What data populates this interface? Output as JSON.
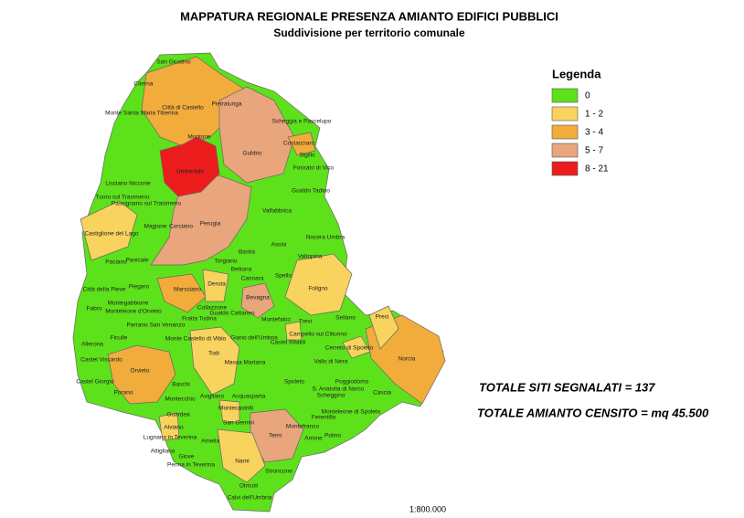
{
  "header": {
    "title": "MAPPATURA REGIONALE PRESENZA AMIANTO EDIFICI PUBBLICI",
    "subtitle": "Suddivisione per territorio comunale"
  },
  "legend": {
    "title": "Legenda",
    "items": [
      {
        "label": "0",
        "color": "#5de11a"
      },
      {
        "label": "1 - 2",
        "color": "#f8d35e"
      },
      {
        "label": "3 - 4",
        "color": "#f1ac3c"
      },
      {
        "label": "5 - 7",
        "color": "#e9a57c"
      },
      {
        "label": "8 - 21",
        "color": "#ec1c1c"
      }
    ]
  },
  "totals": [
    "TOTALE SITI SEGNALATI = 137",
    "TOTALE AMIANTO CENSITO = mq 45.500"
  ],
  "scale": "1:800.000",
  "municipalities": [
    "San Giustino",
    "Citerna",
    "Monte Santa Maria Tiberina",
    "Città di Castello",
    "Pietralunga",
    "Montone",
    "Scheggia e Pascelupo",
    "Costacciaro",
    "Gubbio",
    "Umbertide",
    "Sigillo",
    "Fossato di Vico",
    "Lisciano Niccone",
    "Tuoro sul Trasimeno",
    "Passignano sul Trasimeno",
    "Gualdo Tadino",
    "Valfabbrica",
    "Magione",
    "Corciano",
    "Perugia",
    "Castiglione del Lago",
    "Nocera Umbra",
    "Assisi",
    "Bastia",
    "Valtopina",
    "Panicale",
    "Paciano",
    "Torgiano",
    "Bettona",
    "Cannara",
    "Spello",
    "Foligno",
    "Città della Pieve",
    "Piegaro",
    "Deruta",
    "Marsciano",
    "Bevagna",
    "Montegabbione",
    "Monteleone d'Orvieto",
    "Fabro",
    "Collazzone",
    "Fratta Todina",
    "Gualdo Cattaneo",
    "Montefalco",
    "Trevi",
    "Sellano",
    "Preci",
    "Parrano",
    "San Venanzo",
    "Ficulle",
    "Allerona",
    "Monte Castello di Vibio",
    "Giano dell'Umbria",
    "Castel Ritaldi",
    "Campello sul Clitunno",
    "Cerreto di Spoleto",
    "Norcia",
    "Todi",
    "Castel Viscardo",
    "Orvieto",
    "Massa Martana",
    "Vallo di Nera",
    "Spoleto",
    "Poggiodomo",
    "S. Anatolia di Narco",
    "Scheggino",
    "Cascia",
    "Castel Giorgio",
    "Baschi",
    "Porano",
    "Montecchio",
    "Avigliano",
    "Acquasparta",
    "Monteleone di Spoleto",
    "Ferentillo",
    "Guardea",
    "Alviano",
    "Montecastrilli",
    "San Gemini",
    "Lugnano in Teverina",
    "Amelia",
    "Arrone",
    "Polino",
    "Montefranco",
    "Terni",
    "Attigliano",
    "Giove",
    "Penna in Teverina",
    "Narni",
    "Stroncone",
    "Otricoli",
    "Calvi dell'Umbria"
  ]
}
